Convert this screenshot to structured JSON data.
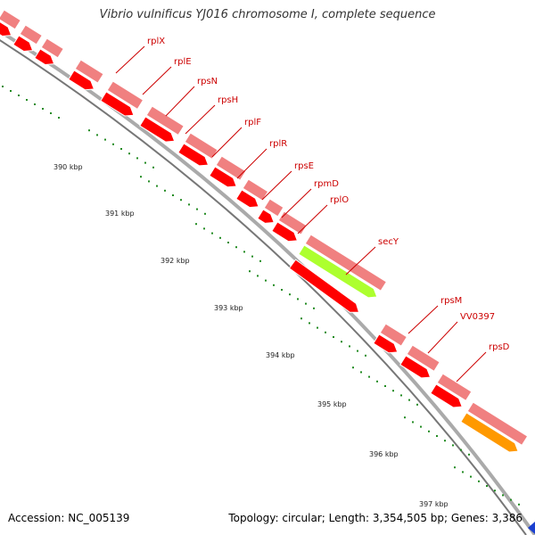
{
  "title": "Vibrio vulnificus YJ016 chromosome I, complete sequence",
  "footer": {
    "accession_label": "Accession:",
    "accession": "NC_005139",
    "topology": "Topology: circular; Length: 3,354,505 bp; Genes: 3,386"
  },
  "colors": {
    "gene_forward": "#f08080",
    "gene_cds": "#ff0000",
    "gene_secY": "#adff2f",
    "gene_rpsD": "#ff9900",
    "label": "#cc0000",
    "tick": "#228b22",
    "backbone": "#888888"
  },
  "scale_ticks": [
    {
      "label": "390 kbp"
    },
    {
      "label": "391 kbp"
    },
    {
      "label": "392 kbp"
    },
    {
      "label": "393 kbp"
    },
    {
      "label": "394 kbp"
    },
    {
      "label": "395 kbp"
    },
    {
      "label": "396 kbp"
    },
    {
      "label": "397 kbp"
    }
  ],
  "genes": [
    {
      "name": "rplX"
    },
    {
      "name": "rplE"
    },
    {
      "name": "rpsN"
    },
    {
      "name": "rpsH"
    },
    {
      "name": "rplF"
    },
    {
      "name": "rplR"
    },
    {
      "name": "rpsE"
    },
    {
      "name": "rpmD"
    },
    {
      "name": "rplO"
    },
    {
      "name": "secY"
    },
    {
      "name": "rpsM"
    },
    {
      "name": "VV0397"
    },
    {
      "name": "rpsD"
    }
  ]
}
